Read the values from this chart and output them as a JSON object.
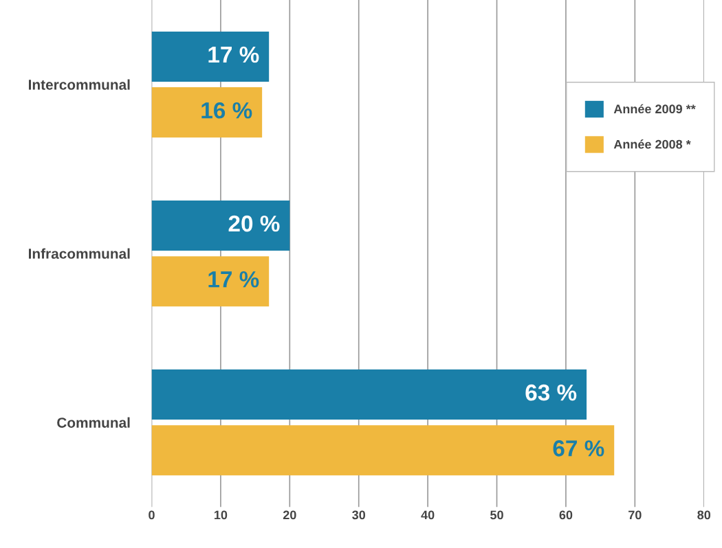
{
  "chart_data": {
    "type": "bar",
    "orientation": "horizontal",
    "categories": [
      "Intercommunal",
      "Infracommunal",
      "Communal"
    ],
    "series": [
      {
        "name": "Année 2009 **",
        "color": "#1a7fa8",
        "values": [
          17,
          20,
          63
        ],
        "value_labels": [
          "17 %",
          "20 %",
          "63 %"
        ]
      },
      {
        "name": "Année 2008 *",
        "color": "#f0b83e",
        "values": [
          16,
          17,
          67
        ],
        "value_labels": [
          "16 %",
          "17 %",
          "67 %"
        ]
      }
    ],
    "xlim": [
      0,
      80
    ],
    "xticks": [
      0,
      10,
      20,
      30,
      40,
      50,
      60,
      70,
      80
    ],
    "grid": "x",
    "legend": "top right"
  }
}
